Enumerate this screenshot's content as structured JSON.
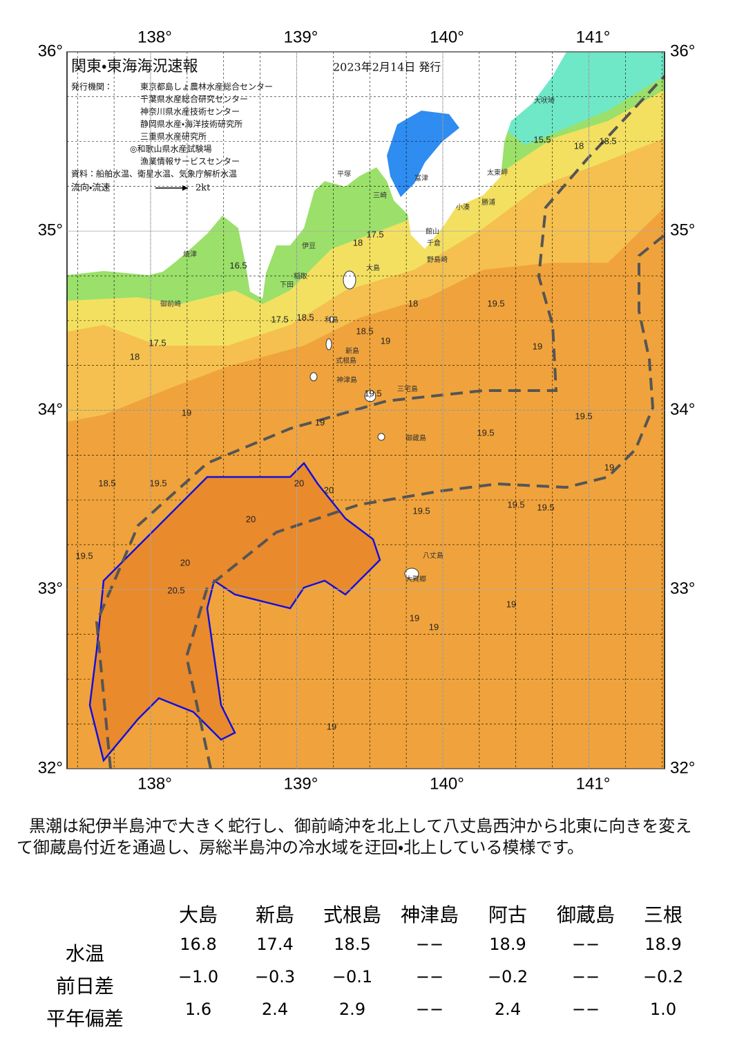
{
  "header": {
    "title": "関東・東海海況速報",
    "date": "2023年2月14日 発行",
    "issuer_label": "発行機関：",
    "issuers": [
      "東京都島しょ農林水産総合センター",
      "千葉県水産総合研究センター",
      "神奈川県水産技術センター",
      "静岡県水産・海洋技術研究所",
      "三重県水産研究所",
      "◎和歌山県水産試験場",
      "漁業情報サービスセンター"
    ],
    "source": "資料：船舶水温、衛星水温、気象庁解析水温",
    "flow_label": "流向・流速",
    "flow_scale": "2kt"
  },
  "map": {
    "lat_ticks": [
      {
        "value": 36,
        "label": "36°"
      },
      {
        "value": 35,
        "label": "35°"
      },
      {
        "value": 34,
        "label": "34°"
      },
      {
        "value": 33,
        "label": "33°"
      },
      {
        "value": 32,
        "label": "32°"
      }
    ],
    "lon_ticks": [
      {
        "value": 138,
        "label": "138°"
      },
      {
        "value": 139,
        "label": "139°"
      },
      {
        "value": 140,
        "label": "140°"
      },
      {
        "value": 141,
        "label": "141°"
      }
    ],
    "places": [
      "大吠埼",
      "太東岬",
      "勝浦",
      "小湊",
      "館山",
      "千倉",
      "野島崎",
      "大島",
      "利島",
      "新島",
      "式根島",
      "神津島",
      "三宅島",
      "御蔵島",
      "八丈島",
      "大賀郷",
      "焼津",
      "御前崎",
      "伊豆",
      "稲取",
      "下田",
      "平塚",
      "三崎",
      "富津"
    ],
    "contour_labels": [
      "15.5",
      "18",
      "18.5",
      "16.5",
      "17.5",
      "18.5",
      "18",
      "17.5",
      "18",
      "18.5",
      "19",
      "19.5",
      "19",
      "19.5",
      "19",
      "19.5",
      "19.5",
      "19",
      "20",
      "20",
      "20",
      "20",
      "20.5",
      "19.5",
      "19.5",
      "18.5",
      "19",
      "19.5",
      "19.5",
      "19",
      "19",
      "19",
      "19",
      "18",
      "17.5",
      "19.5"
    ]
  },
  "caption": "黒潮は紀伊半島沖で大きく蛇行し、御前崎沖を北上して八丈島西沖から北東に向きを変えて御蔵島付近を通過し、房総半島沖の冷水域を迂回・北上している模様です。",
  "table": {
    "columns": [
      "大島",
      "新島",
      "式根島",
      "神津島",
      "阿古",
      "御蔵島",
      "三根"
    ],
    "rows": [
      {
        "label": "水温",
        "values": [
          "16.8",
          "17.4",
          "18.5",
          "−−",
          "18.9",
          "−−",
          "18.9"
        ]
      },
      {
        "label": "前日差",
        "values": [
          "−1.0",
          "−0.3",
          "−0.1",
          "−−",
          "−0.2",
          "−−",
          "−0.2"
        ]
      },
      {
        "label": "平年偏差",
        "values": [
          "1.6",
          "2.4",
          "2.9",
          "−−",
          "2.4",
          "−−",
          "1.0"
        ]
      }
    ]
  }
}
